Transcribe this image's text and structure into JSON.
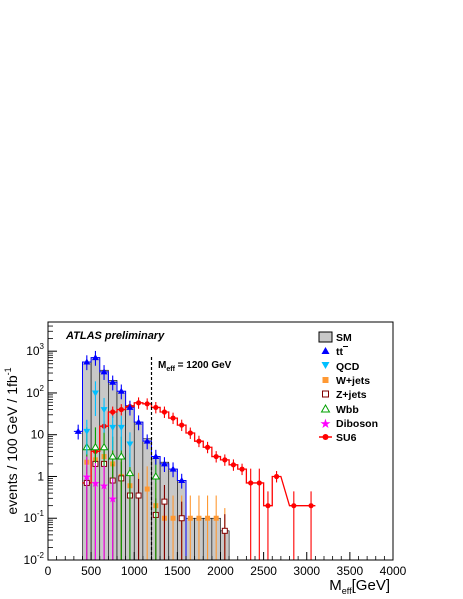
{
  "chart_data": {
    "type": "histogram",
    "xlabel_main": "M",
    "xlabel_sub": "eff",
    "xlabel_unit": "[GeV]",
    "ylabel_text": "events / 100 GeV / 1fb",
    "ylabel_sup": "-1",
    "xlim": [
      0,
      4000
    ],
    "ylim": [
      0.01,
      5000
    ],
    "yscale": "log",
    "x_ticks": [
      "0",
      "500",
      "1000",
      "1500",
      "2000",
      "2500",
      "3000",
      "3500",
      "4000"
    ],
    "y_ticks": [
      {
        "base": "10",
        "exp": "-2"
      },
      {
        "base": "10",
        "exp": "-1"
      },
      {
        "base": "1",
        "exp": ""
      },
      {
        "base": "10",
        "exp": ""
      },
      {
        "base": "10",
        "exp": "2"
      },
      {
        "base": "10",
        "exp": "3"
      }
    ],
    "annotation": "ATLAS preliminary",
    "cut_label_main": "M",
    "cut_label_sub": "eff",
    "cut_label_rest": " = 1200 GeV",
    "cut_x": 1200,
    "legend": {
      "SM": "SM",
      "ttbar": "tt",
      "QCD": "QCD",
      "Wjets": "W+jets",
      "Zjets": "Z+jets",
      "Wbb": "Wbb",
      "Diboson": "Diboson",
      "SU6": "SU6"
    },
    "colors": {
      "SM_fill": "#c8c8c8",
      "ttbar": "#0000ff",
      "QCD": "#00bfff",
      "Wjets": "#ff9933",
      "Zjets": "#800000",
      "Wbb": "#00a000",
      "Diboson": "#ff00ff",
      "SU6": "#ff0000"
    },
    "sm_hist": [
      {
        "x0": 300,
        "x1": 400,
        "y": 0.01
      },
      {
        "x0": 400,
        "x1": 500,
        "y": 550
      },
      {
        "x0": 500,
        "x1": 600,
        "y": 700
      },
      {
        "x0": 600,
        "x1": 700,
        "y": 350
      },
      {
        "x0": 700,
        "x1": 800,
        "y": 200
      },
      {
        "x0": 800,
        "x1": 900,
        "y": 110
      },
      {
        "x0": 900,
        "x1": 1000,
        "y": 50
      },
      {
        "x0": 1000,
        "x1": 1100,
        "y": 20
      },
      {
        "x0": 1100,
        "x1": 1200,
        "y": 8
      },
      {
        "x0": 1200,
        "x1": 1300,
        "y": 3
      },
      {
        "x0": 1300,
        "x1": 1400,
        "y": 2.2
      },
      {
        "x0": 1400,
        "x1": 1500,
        "y": 1.5
      },
      {
        "x0": 1500,
        "x1": 1600,
        "y": 0.8
      },
      {
        "x0": 1600,
        "x1": 1700,
        "y": 0.1
      },
      {
        "x0": 1700,
        "x1": 1800,
        "y": 0.1
      },
      {
        "x0": 1800,
        "x1": 1900,
        "y": 0.1
      },
      {
        "x0": 1900,
        "x1": 2000,
        "y": 0.1
      },
      {
        "x0": 2000,
        "x1": 2100,
        "y": 0.05
      }
    ],
    "ttbar_hist": [
      {
        "x0": 300,
        "x1": 400,
        "y": 12
      },
      {
        "x0": 400,
        "x1": 500,
        "y": 550
      },
      {
        "x0": 500,
        "x1": 600,
        "y": 700
      },
      {
        "x0": 600,
        "x1": 700,
        "y": 320
      },
      {
        "x0": 700,
        "x1": 800,
        "y": 180
      },
      {
        "x0": 800,
        "x1": 900,
        "y": 110
      },
      {
        "x0": 900,
        "x1": 1000,
        "y": 45
      },
      {
        "x0": 1000,
        "x1": 1100,
        "y": 20
      },
      {
        "x0": 1100,
        "x1": 1200,
        "y": 7
      },
      {
        "x0": 1200,
        "x1": 1300,
        "y": 3
      },
      {
        "x0": 1300,
        "x1": 1400,
        "y": 2
      },
      {
        "x0": 1400,
        "x1": 1500,
        "y": 1.5
      },
      {
        "x0": 1500,
        "x1": 1600,
        "y": 0.8
      }
    ],
    "ttbar_points": [
      {
        "x": 350,
        "y": 12
      },
      {
        "x": 450,
        "y": 550
      },
      {
        "x": 550,
        "y": 700
      },
      {
        "x": 650,
        "y": 320
      },
      {
        "x": 750,
        "y": 180
      },
      {
        "x": 850,
        "y": 110
      },
      {
        "x": 950,
        "y": 45
      },
      {
        "x": 1050,
        "y": 20
      },
      {
        "x": 1150,
        "y": 7
      },
      {
        "x": 1250,
        "y": 3
      },
      {
        "x": 1350,
        "y": 2
      },
      {
        "x": 1450,
        "y": 1.5
      },
      {
        "x": 1550,
        "y": 0.8
      }
    ],
    "qcd_points": [
      {
        "x": 450,
        "y": 12
      },
      {
        "x": 550,
        "y": 100
      },
      {
        "x": 650,
        "y": 40
      },
      {
        "x": 750,
        "y": 15
      },
      {
        "x": 850,
        "y": 15
      },
      {
        "x": 950,
        "y": 6
      }
    ],
    "wjets_points": [
      {
        "x": 450,
        "y": 2.2
      },
      {
        "x": 550,
        "y": 2.5
      },
      {
        "x": 650,
        "y": 3
      },
      {
        "x": 750,
        "y": 2
      },
      {
        "x": 850,
        "y": 1
      },
      {
        "x": 950,
        "y": 0.6
      },
      {
        "x": 1050,
        "y": 0.35
      },
      {
        "x": 1150,
        "y": 0.5
      },
      {
        "x": 1250,
        "y": 0.2
      },
      {
        "x": 1350,
        "y": 0.1
      },
      {
        "x": 1450,
        "y": 0.1
      },
      {
        "x": 1550,
        "y": 0.1
      },
      {
        "x": 1650,
        "y": 0.1
      },
      {
        "x": 1750,
        "y": 0.1
      },
      {
        "x": 1850,
        "y": 0.1
      },
      {
        "x": 1950,
        "y": 0.1
      },
      {
        "x": 2050,
        "y": 0.05
      }
    ],
    "zjets_points": [
      {
        "x": 450,
        "y": 0.7
      },
      {
        "x": 550,
        "y": 2
      },
      {
        "x": 650,
        "y": 2
      },
      {
        "x": 750,
        "y": 0.8
      },
      {
        "x": 850,
        "y": 0.9
      },
      {
        "x": 950,
        "y": 0.35
      },
      {
        "x": 1050,
        "y": 0.35
      },
      {
        "x": 1250,
        "y": 0.12
      },
      {
        "x": 1350,
        "y": 0.25
      },
      {
        "x": 1550,
        "y": 0.1
      },
      {
        "x": 2050,
        "y": 0.05
      }
    ],
    "wbb_points": [
      {
        "x": 450,
        "y": 5
      },
      {
        "x": 550,
        "y": 5
      },
      {
        "x": 650,
        "y": 5
      },
      {
        "x": 750,
        "y": 3
      },
      {
        "x": 850,
        "y": 3
      },
      {
        "x": 950,
        "y": 1.2
      },
      {
        "x": 1250,
        "y": 1
      }
    ],
    "diboson_points": [
      {
        "x": 450,
        "y": 1
      },
      {
        "x": 550,
        "y": 0.7
      },
      {
        "x": 650,
        "y": 0.6
      },
      {
        "x": 750,
        "y": 0.3
      }
    ],
    "su6_points": [
      {
        "x": 450,
        "y": 0.7
      },
      {
        "x": 550,
        "y": 4
      },
      {
        "x": 650,
        "y": 16
      },
      {
        "x": 750,
        "y": 35
      },
      {
        "x": 850,
        "y": 40
      },
      {
        "x": 950,
        "y": 47
      },
      {
        "x": 1050,
        "y": 58
      },
      {
        "x": 1150,
        "y": 55
      },
      {
        "x": 1250,
        "y": 45
      },
      {
        "x": 1350,
        "y": 35
      },
      {
        "x": 1450,
        "y": 25
      },
      {
        "x": 1550,
        "y": 17
      },
      {
        "x": 1650,
        "y": 11
      },
      {
        "x": 1750,
        "y": 7
      },
      {
        "x": 1850,
        "y": 5
      },
      {
        "x": 1950,
        "y": 3
      },
      {
        "x": 2050,
        "y": 2.5
      },
      {
        "x": 2150,
        "y": 1.9
      },
      {
        "x": 2250,
        "y": 1.5
      },
      {
        "x": 2350,
        "y": 0.7
      },
      {
        "x": 2450,
        "y": 0.7
      },
      {
        "x": 2550,
        "y": 0.2
      },
      {
        "x": 2650,
        "y": 1
      },
      {
        "x": 2850,
        "y": 0.2
      },
      {
        "x": 3050,
        "y": 0.2
      }
    ]
  }
}
